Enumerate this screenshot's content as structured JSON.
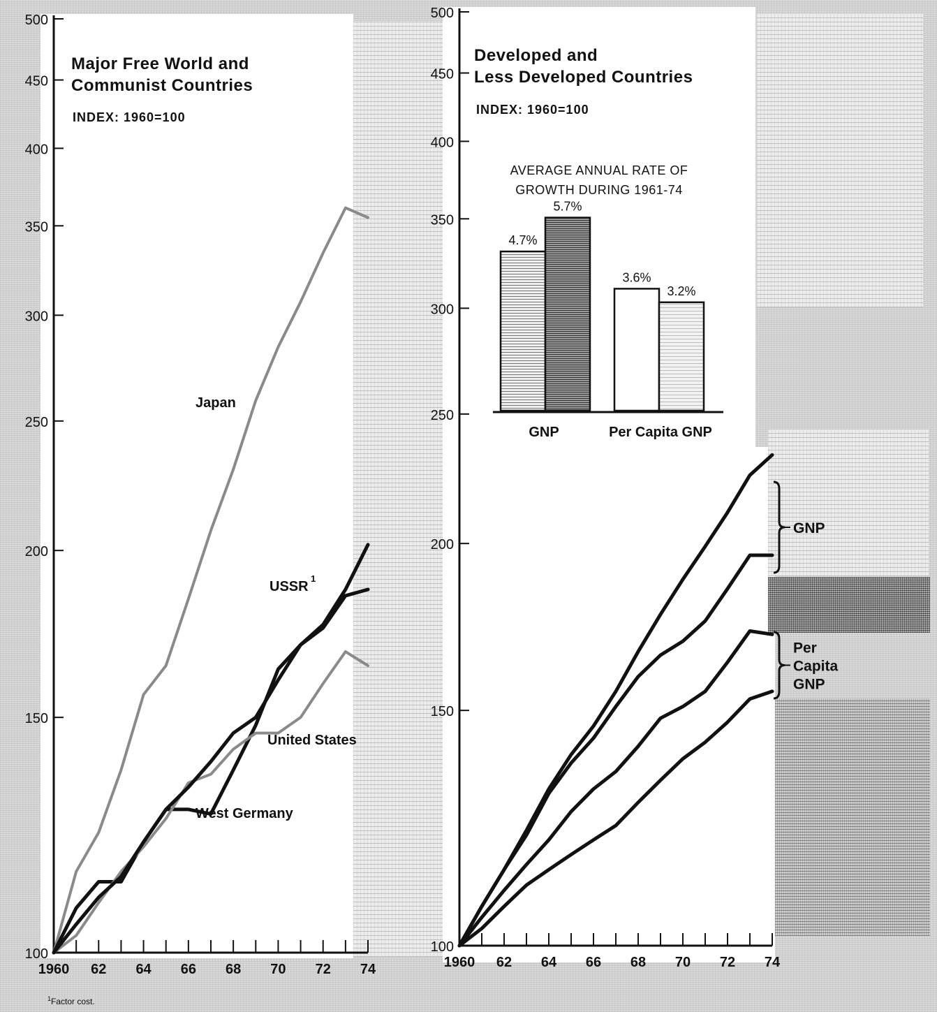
{
  "left_panel": {
    "title_line1": "Major Free World and",
    "title_line2": "Communist Countries",
    "index_label": "INDEX: 1960=100"
  },
  "right_panel": {
    "title_line1": "Developed and",
    "title_line2": "Less Developed Countries",
    "index_label": "INDEX: 1960=100"
  },
  "inset": {
    "title_line1": "AVERAGE ANNUAL RATE OF",
    "title_line2": "GROWTH DURING 1961-74"
  },
  "footnote": {
    "marker": "1",
    "text": "Factor cost."
  },
  "chart_data": [
    {
      "type": "line",
      "title": "Major Free World and Communist Countries",
      "subtitle": "INDEX: 1960=100",
      "x": [
        1960,
        1961,
        1962,
        1963,
        1964,
        1965,
        1966,
        1967,
        1968,
        1969,
        1970,
        1971,
        1972,
        1973,
        1974
      ],
      "x_tick_labels": [
        "1960",
        "62",
        "64",
        "66",
        "68",
        "70",
        "72",
        "74"
      ],
      "x_tick_values": [
        1960,
        1962,
        1964,
        1966,
        1968,
        1970,
        1972,
        1974
      ],
      "y_tick_labels": [
        "100",
        "150",
        "200",
        "250",
        "300",
        "350",
        "400",
        "450",
        "500"
      ],
      "ylim": [
        100,
        500
      ],
      "y_scale": "log",
      "series": [
        {
          "name": "Japan",
          "color": "#8a8a8a",
          "values": [
            100,
            115,
            123,
            137,
            156,
            164,
            184,
            207,
            230,
            259,
            284,
            307,
            334,
            361,
            355
          ]
        },
        {
          "name": "USSR",
          "name_sup": "1",
          "color": "#111111",
          "values": [
            100,
            108,
            113,
            113,
            121,
            128,
            128,
            127,
            137,
            148,
            163,
            170,
            175,
            185,
            187
          ]
        },
        {
          "name": "United States",
          "color": "#8a8a8a",
          "values": [
            100,
            103,
            109,
            115,
            120,
            126,
            134,
            136,
            142,
            146,
            146,
            150,
            159,
            168,
            164
          ]
        },
        {
          "name": "West Germany",
          "color": "#111111",
          "values": [
            100,
            105,
            110,
            114,
            121,
            128,
            133,
            139,
            146,
            150,
            160,
            170,
            176,
            187,
            202
          ]
        }
      ]
    },
    {
      "type": "line",
      "title": "Developed and Less Developed Countries",
      "subtitle": "INDEX: 1960=100",
      "x": [
        1960,
        1961,
        1962,
        1963,
        1964,
        1965,
        1966,
        1967,
        1968,
        1969,
        1970,
        1971,
        1972,
        1973,
        1974
      ],
      "x_tick_labels": [
        "1960",
        "62",
        "64",
        "66",
        "68",
        "70",
        "72",
        "74"
      ],
      "x_tick_values": [
        1960,
        1962,
        1964,
        1966,
        1968,
        1970,
        1972,
        1974
      ],
      "y_tick_labels": [
        "100",
        "150",
        "200",
        "250",
        "300",
        "350",
        "400",
        "450",
        "500"
      ],
      "ylim": [
        100,
        500
      ],
      "y_scale": "log",
      "group_labels": [
        {
          "label": "GNP",
          "series_index": [
            0,
            1
          ]
        },
        {
          "label_lines": [
            "Per",
            "Capita",
            "GNP"
          ],
          "series_index": [
            2,
            3
          ]
        }
      ],
      "series": [
        {
          "values": [
            100,
            107,
            114,
            122,
            131,
            139,
            146,
            155,
            166,
            177,
            188,
            199,
            211,
            225,
            233
          ]
        },
        {
          "values": [
            100,
            107,
            114,
            121,
            130,
            137,
            143,
            151,
            159,
            165,
            169,
            175,
            185,
            196,
            196
          ]
        },
        {
          "values": [
            100,
            105,
            110,
            115,
            120,
            126,
            131,
            135,
            141,
            148,
            151,
            155,
            163,
            172,
            171
          ]
        },
        {
          "values": [
            100,
            103,
            107,
            111,
            114,
            117,
            120,
            123,
            128,
            133,
            138,
            142,
            147,
            153,
            155
          ]
        }
      ]
    },
    {
      "type": "bar",
      "title": "AVERAGE ANNUAL RATE OF GROWTH DURING 1961-74",
      "categories": [
        "GNP",
        "Per Capita GNP"
      ],
      "series": [
        {
          "values": [
            4.7,
            3.6
          ]
        },
        {
          "values": [
            5.7,
            3.2
          ]
        }
      ],
      "data_labels": [
        [
          "4.7%",
          "3.6%"
        ],
        [
          "5.7%",
          "3.2%"
        ]
      ]
    }
  ]
}
